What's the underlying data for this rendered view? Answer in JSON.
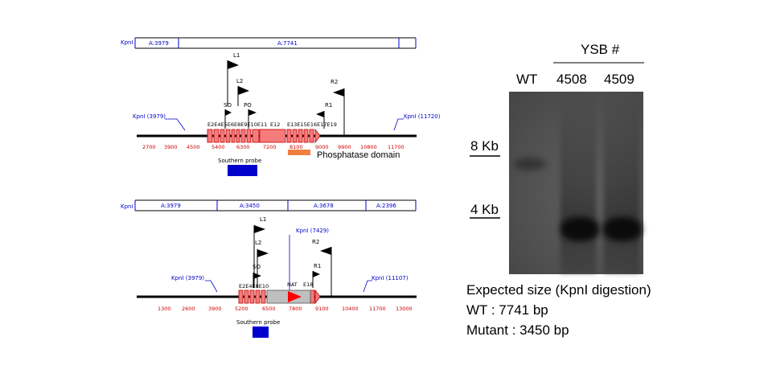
{
  "top_map": {
    "enzyme_label": "KpnI",
    "fragments": [
      "A:3979",
      "A:7741"
    ],
    "site_left": "KpnI (3979)",
    "site_right": "KpnI (11720)",
    "primers": [
      "L1",
      "L2",
      "SO",
      "PO",
      "R2",
      "R1"
    ],
    "exons": [
      "E1",
      "E2",
      "E4",
      "E5",
      "E6",
      "E8",
      "E9",
      "E10",
      "E11",
      "E12",
      "E13",
      "E15",
      "E16",
      "E17",
      "E18",
      "E19"
    ],
    "exon_label_text": "E2E4E5E6E8E9E10E11",
    "exon_label_e12": "E12",
    "exon_label_right": "E13E15E16E17E19",
    "ticks": [
      "2700",
      "3900",
      "4500",
      "5400",
      "6300",
      "7200",
      "8100",
      "9000",
      "9900",
      "10800",
      "11700"
    ],
    "probe_label": "Southern probe",
    "domain_label": "Phosphatase domain"
  },
  "bottom_map": {
    "enzyme_label": "KpnI",
    "fragments": [
      "A:3979",
      "A:3450",
      "A:3678",
      "A:2396"
    ],
    "site_left": "KpnI (3979)",
    "site_mid": "KpnI (7429)",
    "site_right": "KpnI (11107)",
    "primers": [
      "L1",
      "L2",
      "SO",
      "R2",
      "R1"
    ],
    "exon_label_left": "E2E4E8E10",
    "nat_label": "NAT",
    "exon_label_right": "E18",
    "ticks": [
      "1300",
      "2600",
      "3900",
      "5200",
      "6500",
      "7800",
      "9100",
      "10400",
      "11700",
      "13000"
    ],
    "probe_label": "Southern probe"
  },
  "gel": {
    "header": "YSB #",
    "lanes": [
      "WT",
      "4508",
      "4509"
    ],
    "markers": [
      "8 Kb",
      "4 Kb"
    ]
  },
  "expected": {
    "title": "Expected size (KpnI digestion)",
    "wt": "WT : 7741 bp",
    "mutant": "Mutant : 3450 bp"
  },
  "colors": {
    "exon_fill": "#f47c7c",
    "exon_stroke": "#c00000",
    "probe": "#0000cc",
    "domain": "#f08040",
    "nat_arrow": "#ff0000",
    "gray_block": "#bfbfbf",
    "tick_text": "#cc0000",
    "site_text": "#0000cc"
  }
}
